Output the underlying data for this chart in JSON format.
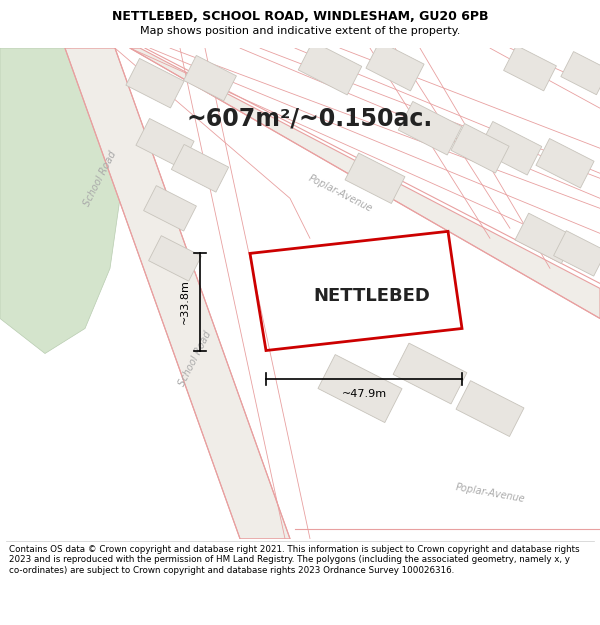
{
  "title_line1": "NETTLEBED, SCHOOL ROAD, WINDLESHAM, GU20 6PB",
  "title_line2": "Map shows position and indicative extent of the property.",
  "area_text": "~607m²/~0.150ac.",
  "property_name": "NETTLEBED",
  "dim_width": "~47.9m",
  "dim_height": "~33.8m",
  "footer_text": "Contains OS data © Crown copyright and database right 2021. This information is subject to Crown copyright and database rights 2023 and is reproduced with the permission of HM Land Registry. The polygons (including the associated geometry, namely x, y co-ordinates) are subject to Crown copyright and database rights 2023 Ordnance Survey 100026316.",
  "map_bg": "#f5f2ee",
  "road_fill": "#f7d8d8",
  "road_edge": "#e8a0a0",
  "parcel_fill": "#e8e5e0",
  "parcel_edge": "#c8c4bc",
  "green_fill": "#d4e4cc",
  "green_edge": "#b8ccb0",
  "property_edge": "#cc0000",
  "header_bg": "#ffffff",
  "footer_bg": "#ffffff",
  "dim_line_color": "#000000",
  "text_color": "#222222",
  "road_label_color": "#aaaaaa"
}
